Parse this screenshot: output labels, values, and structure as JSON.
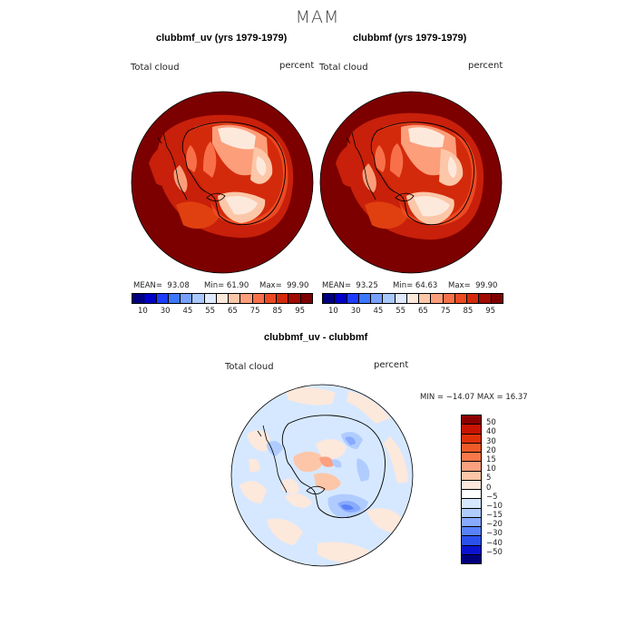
{
  "figure": {
    "season": "MAM"
  },
  "panels": [
    {
      "title": "clubbmf_uv (yrs 1979-1979)",
      "left_label": "Total cloud",
      "right_label": "percent",
      "stats": {
        "mean_label": "MEAN=",
        "mean": "93.08",
        "min_label": "Min=",
        "min": "61.90",
        "max_label": "Max=",
        "max": "99.90"
      }
    },
    {
      "title": "clubbmf (yrs 1979-1979)",
      "left_label": "Total cloud",
      "right_label": "percent",
      "stats": {
        "mean_label": "MEAN=",
        "mean": "93.25",
        "min_label": "Min=",
        "min": "64.63",
        "max_label": "Max=",
        "max": "99.90"
      }
    }
  ],
  "field_colorbar": {
    "ticks": [
      "10",
      "30",
      "45",
      "55",
      "65",
      "75",
      "85",
      "95"
    ],
    "colors": [
      "#00007f",
      "#0000c8",
      "#1e3cff",
      "#3c78ff",
      "#78a0ff",
      "#a8c8ff",
      "#e0eaff",
      "#fde9dc",
      "#fcc7a8",
      "#fc9e7a",
      "#f8704a",
      "#ec4a22",
      "#d42a0c",
      "#a00a00",
      "#7d0000"
    ]
  },
  "diff_panel": {
    "title": "clubbmf_uv - clubbmf",
    "left_label": "Total cloud",
    "right_label": "percent",
    "minmax": "MIN = −14.07  MAX =   16.37"
  },
  "diff_colorbar": {
    "ticks": [
      "50",
      "40",
      "30",
      "20",
      "15",
      "10",
      "5",
      "0",
      "−5",
      "−10",
      "−15",
      "−20",
      "−30",
      "−40",
      "−50"
    ],
    "colors": [
      "#8b0000",
      "#c81400",
      "#e0300a",
      "#f05a28",
      "#f8784a",
      "#fca080",
      "#fdc6a8",
      "#fde8dc",
      "#ffffff",
      "#d6e8ff",
      "#b0ccff",
      "#88aaff",
      "#5a82f8",
      "#2c50ee",
      "#0a14d0",
      "#00007f"
    ]
  }
}
